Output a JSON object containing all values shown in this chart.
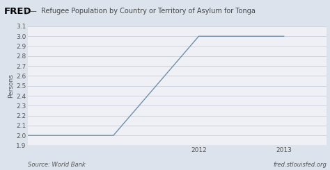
{
  "title": "Refugee Population by Country or Territory of Asylum for Tonga",
  "ylabel": "Persons",
  "x_data": [
    2010,
    2011,
    2012,
    2013
  ],
  "y_data": [
    2.0,
    2.0,
    3.0,
    3.0
  ],
  "line_color": "#7090a8",
  "line_width": 1.0,
  "bg_color": "#dce3ec",
  "plot_bg_color": "#eef0f5",
  "ylim": [
    1.9,
    3.1
  ],
  "xlim": [
    2010.0,
    2013.5
  ],
  "yticks": [
    1.9,
    2.0,
    2.1,
    2.2,
    2.3,
    2.4,
    2.5,
    2.6,
    2.7,
    2.8,
    2.9,
    3.0,
    3.1
  ],
  "xtick_labels": [
    "2012",
    "2013"
  ],
  "xtick_positions": [
    2012,
    2013
  ],
  "source_left": "Source: World Bank",
  "source_right": "fred.stlouisfed.org",
  "fred_text": "FRED",
  "header_bg": "#dce3ec",
  "grid_color": "#c8d0dc",
  "tick_label_fontsize": 6.5,
  "ylabel_fontsize": 6.5,
  "title_fontsize": 7.0,
  "footer_fontsize": 6.0
}
